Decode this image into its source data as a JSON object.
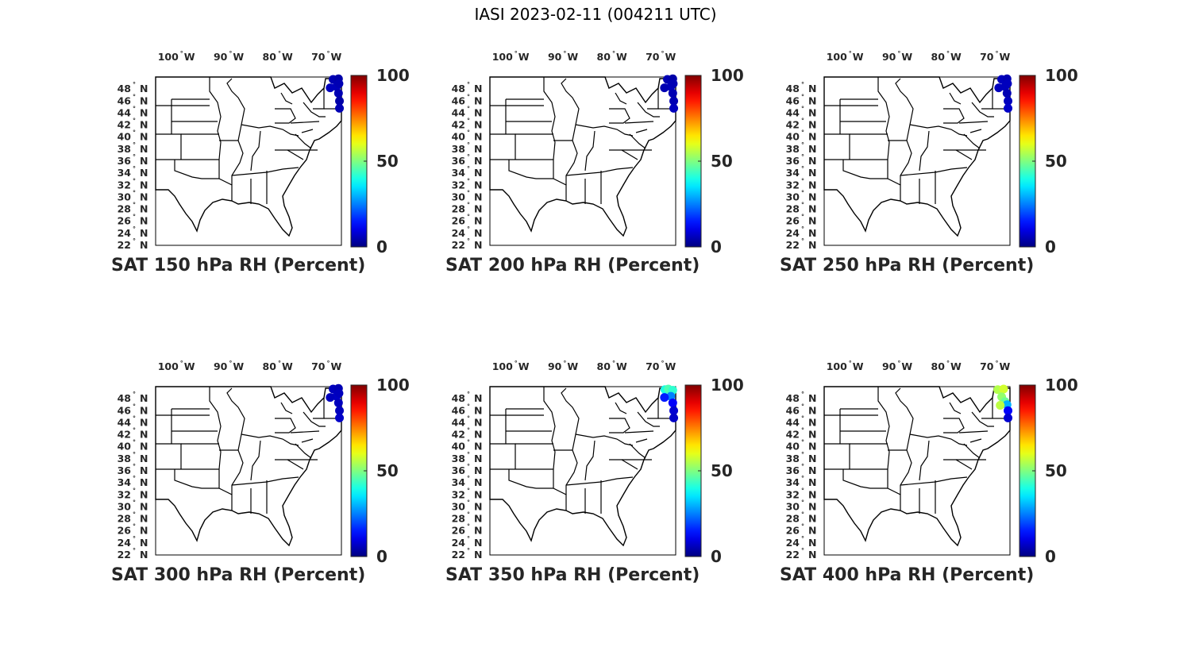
{
  "figure_title": "IASI 2023-02-11 (004211 UTC)",
  "colorbar": {
    "ticks": [
      "0",
      "50",
      "100"
    ],
    "range": [
      0,
      100
    ],
    "colormap": "jet"
  },
  "longitude_labels": [
    {
      "deg": "100",
      "hemi": "W"
    },
    {
      "deg": "90",
      "hemi": "W"
    },
    {
      "deg": "80",
      "hemi": "W"
    },
    {
      "deg": "70",
      "hemi": "W"
    }
  ],
  "latitude_labels": [
    {
      "deg": "48",
      "hemi": "N"
    },
    {
      "deg": "46",
      "hemi": "N"
    },
    {
      "deg": "44",
      "hemi": "N"
    },
    {
      "deg": "42",
      "hemi": "N"
    },
    {
      "deg": "40",
      "hemi": "N"
    },
    {
      "deg": "38",
      "hemi": "N"
    },
    {
      "deg": "36",
      "hemi": "N"
    },
    {
      "deg": "34",
      "hemi": "N"
    },
    {
      "deg": "32",
      "hemi": "N"
    },
    {
      "deg": "30",
      "hemi": "N"
    },
    {
      "deg": "28",
      "hemi": "N"
    },
    {
      "deg": "26",
      "hemi": "N"
    },
    {
      "deg": "24",
      "hemi": "N"
    },
    {
      "deg": "22",
      "hemi": "N"
    }
  ],
  "map_extent": {
    "lon": [
      -105,
      -67
    ],
    "lat": [
      22,
      50
    ]
  },
  "panels": [
    {
      "title": "SAT 150 hPa RH (Percent)",
      "rh_points": [
        {
          "lon": -68.7,
          "lat": 49.6,
          "rh": 5
        },
        {
          "lon": -68.0,
          "lat": 48.4,
          "rh": 6
        },
        {
          "lon": -67.6,
          "lat": 47.3,
          "rh": 5
        },
        {
          "lon": -67.4,
          "lat": 46.0,
          "rh": 4
        },
        {
          "lon": -67.4,
          "lat": 44.8,
          "rh": 5
        },
        {
          "lon": -69.3,
          "lat": 48.2,
          "rh": 6
        },
        {
          "lon": -67.6,
          "lat": 49.7,
          "rh": 4
        },
        {
          "lon": -67.5,
          "lat": 48.9,
          "rh": 5
        }
      ]
    },
    {
      "title": "SAT 200 hPa RH (Percent)",
      "rh_points": [
        {
          "lon": -68.7,
          "lat": 49.6,
          "rh": 5
        },
        {
          "lon": -68.0,
          "lat": 48.4,
          "rh": 6
        },
        {
          "lon": -67.6,
          "lat": 47.3,
          "rh": 5
        },
        {
          "lon": -67.4,
          "lat": 46.0,
          "rh": 5
        },
        {
          "lon": -67.4,
          "lat": 44.8,
          "rh": 6
        },
        {
          "lon": -69.3,
          "lat": 48.2,
          "rh": 5
        },
        {
          "lon": -67.6,
          "lat": 49.7,
          "rh": 4
        },
        {
          "lon": -67.5,
          "lat": 48.9,
          "rh": 5
        }
      ]
    },
    {
      "title": "SAT 250 hPa RH (Percent)",
      "rh_points": [
        {
          "lon": -68.7,
          "lat": 49.6,
          "rh": 6
        },
        {
          "lon": -68.0,
          "lat": 48.4,
          "rh": 6
        },
        {
          "lon": -67.6,
          "lat": 47.3,
          "rh": 5
        },
        {
          "lon": -67.4,
          "lat": 46.0,
          "rh": 6
        },
        {
          "lon": -67.4,
          "lat": 44.8,
          "rh": 7
        },
        {
          "lon": -69.3,
          "lat": 48.2,
          "rh": 6
        },
        {
          "lon": -67.6,
          "lat": 49.7,
          "rh": 5
        },
        {
          "lon": -67.5,
          "lat": 48.9,
          "rh": 6
        }
      ]
    },
    {
      "title": "SAT 300 hPa RH (Percent)",
      "rh_points": [
        {
          "lon": -68.7,
          "lat": 49.6,
          "rh": 6
        },
        {
          "lon": -68.0,
          "lat": 48.4,
          "rh": 7
        },
        {
          "lon": -67.6,
          "lat": 47.3,
          "rh": 6
        },
        {
          "lon": -67.4,
          "lat": 46.0,
          "rh": 6
        },
        {
          "lon": -67.4,
          "lat": 44.8,
          "rh": 7
        },
        {
          "lon": -69.3,
          "lat": 48.2,
          "rh": 6
        },
        {
          "lon": -67.6,
          "lat": 49.7,
          "rh": 5
        },
        {
          "lon": -67.5,
          "lat": 48.9,
          "rh": 6
        }
      ]
    },
    {
      "title": "SAT 350 hPa RH (Percent)",
      "rh_points": [
        {
          "lon": -69.2,
          "lat": 49.5,
          "rh": 40
        },
        {
          "lon": -68.5,
          "lat": 49.6,
          "rh": 45
        },
        {
          "lon": -67.6,
          "lat": 49.4,
          "rh": 42
        },
        {
          "lon": -68.0,
          "lat": 48.4,
          "rh": 25
        },
        {
          "lon": -67.6,
          "lat": 47.3,
          "rh": 12
        },
        {
          "lon": -67.4,
          "lat": 46.0,
          "rh": 8
        },
        {
          "lon": -67.4,
          "lat": 44.8,
          "rh": 7
        },
        {
          "lon": -69.3,
          "lat": 48.2,
          "rh": 15
        }
      ]
    },
    {
      "title": "SAT 400 hPa RH (Percent)",
      "rh_points": [
        {
          "lon": -69.5,
          "lat": 49.5,
          "rh": 55
        },
        {
          "lon": -68.3,
          "lat": 49.6,
          "rh": 58
        },
        {
          "lon": -68.7,
          "lat": 48.3,
          "rh": 52
        },
        {
          "lon": -68.0,
          "lat": 47.5,
          "rh": 48
        },
        {
          "lon": -67.6,
          "lat": 47.0,
          "rh": 30
        },
        {
          "lon": -67.4,
          "lat": 46.0,
          "rh": 12
        },
        {
          "lon": -67.4,
          "lat": 44.8,
          "rh": 8
        },
        {
          "lon": -69.0,
          "lat": 46.9,
          "rh": 56
        }
      ]
    }
  ]
}
